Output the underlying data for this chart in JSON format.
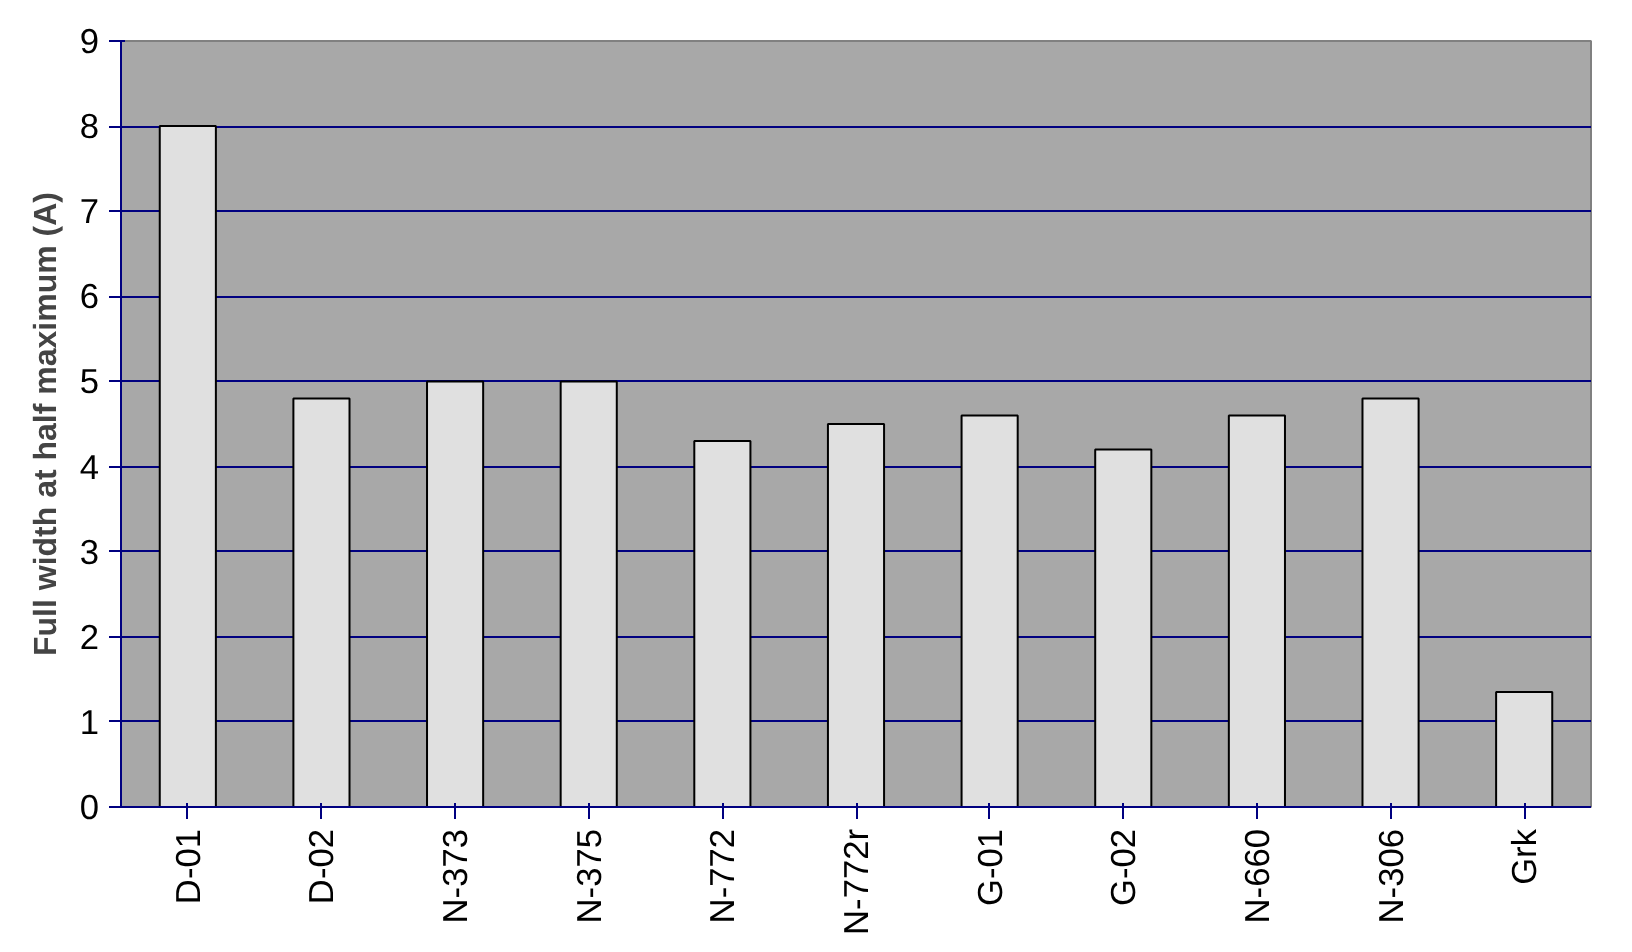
{
  "chart_data": {
    "type": "bar",
    "ylabel": "Full width at half maximum (A)",
    "categories": [
      "D-01",
      "D-02",
      "N-373",
      "N-375",
      "N-772",
      "N-772r",
      "G-01",
      "G-02",
      "N-660",
      "N-306",
      "Grk"
    ],
    "values": [
      8,
      4.8,
      5,
      5,
      4.3,
      4.5,
      4.6,
      4.2,
      4.6,
      4.8,
      1.35
    ],
    "color": "#e0e0e0",
    "ylim": [
      0,
      9
    ],
    "yticks": [
      0,
      1,
      2,
      3,
      4,
      5,
      6,
      7,
      8,
      9
    ],
    "grid": "y"
  }
}
